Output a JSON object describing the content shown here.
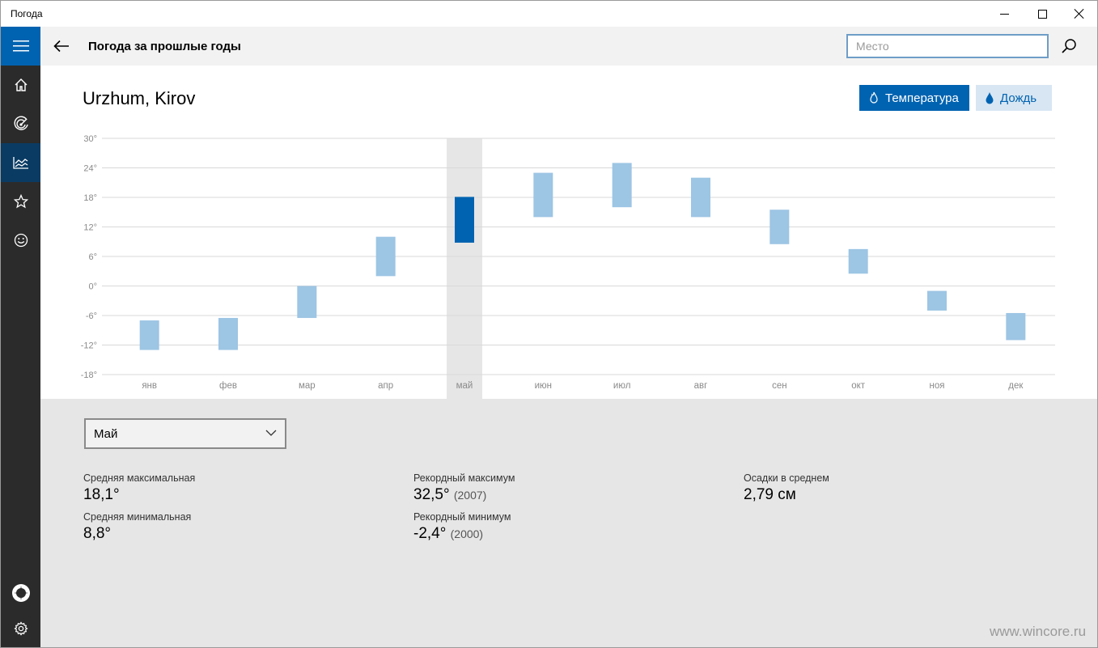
{
  "window": {
    "title": "Погода"
  },
  "header": {
    "title": "Погода за прошлые годы",
    "search_placeholder": "Место"
  },
  "rail": {
    "items": [
      "menu-icon",
      "home-icon",
      "radar-icon",
      "history-chart-icon",
      "star-icon",
      "smiley-icon",
      "account-icon",
      "gear-icon"
    ],
    "accent": "#0063b1",
    "selected_bg": "#0a3b63"
  },
  "location": "Urzhum, Kirov",
  "toggles": {
    "temperature": "Температура",
    "rain": "Дождь"
  },
  "chart_data": {
    "type": "bar",
    "subtype": "range",
    "categories": [
      "янв",
      "фев",
      "мар",
      "апр",
      "май",
      "июн",
      "июл",
      "авг",
      "сен",
      "окт",
      "ноя",
      "дек"
    ],
    "series": [
      {
        "low": [
          -13,
          -13,
          -6.5,
          2,
          8.8,
          14,
          16,
          14,
          8.5,
          2.5,
          -5,
          -11
        ],
        "high": [
          -7,
          -6.5,
          0,
          10,
          18.1,
          23,
          25,
          22,
          15.5,
          7.5,
          -1,
          -5.5
        ]
      }
    ],
    "selected_index": 4,
    "yticks": [
      "30°",
      "24°",
      "18°",
      "12°",
      "6°",
      "0°",
      "-6°",
      "-12°",
      "-18°"
    ],
    "ylim": [
      -18,
      30
    ],
    "grid": true,
    "colors": {
      "bar": "#9dc5e4",
      "selected_bar": "#0063b1",
      "selected_column": "#e6e6e6"
    }
  },
  "details": {
    "month": "Май",
    "avg_max_label": "Средняя максимальная",
    "avg_max_value": "18,1°",
    "avg_min_label": "Средняя минимальная",
    "avg_min_value": "8,8°",
    "rec_max_label": "Рекордный максимум",
    "rec_max_value": "32,5°",
    "rec_max_year": "(2007)",
    "rec_min_label": "Рекордный минимум",
    "rec_min_value": "-2,4°",
    "rec_min_year": "(2000)",
    "precip_label": "Осадки в среднем",
    "precip_value": "2,79 см"
  },
  "watermark": "www.wincore.ru"
}
